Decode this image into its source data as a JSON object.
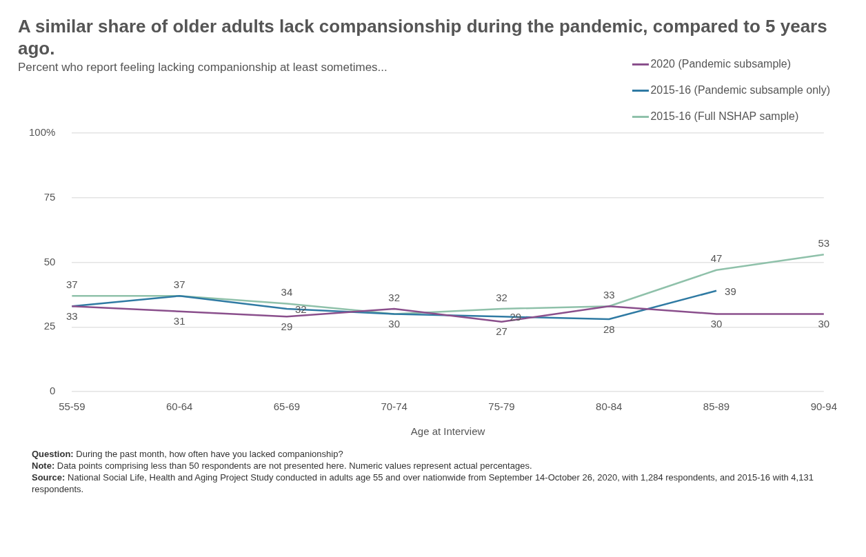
{
  "chart_data": {
    "type": "line",
    "title": "A similar share of older adults lack compansionship during the pandemic, compared to 5 years ago.",
    "subtitle": "Percent who report feeling lacking companionship at least sometimes...",
    "xlabel": "Age at Interview",
    "categories": [
      "55-59",
      "60-64",
      "65-69",
      "70-74",
      "75-79",
      "80-84",
      "85-89",
      "90-94"
    ],
    "series": [
      {
        "name": "2020 (Pandemic subsample)",
        "color": "#8a4f8c",
        "values": [
          33,
          31,
          29,
          32,
          27,
          33,
          30,
          30
        ],
        "value_labels": [
          "33",
          "31",
          "29",
          "32",
          "27",
          "33",
          "30",
          "30"
        ]
      },
      {
        "name": "2015-16 (Pandemic subsample only)",
        "color": "#2f7aa3",
        "values": [
          33,
          37,
          32,
          30,
          29,
          28,
          39,
          null
        ],
        "value_labels": [
          null,
          null,
          "32",
          null,
          "29",
          "28",
          "39",
          null
        ]
      },
      {
        "name": "2015-16 (Full NSHAP sample)",
        "color": "#8fc1aa",
        "values": [
          37,
          37,
          34,
          30,
          32,
          33,
          47,
          53
        ],
        "value_labels": [
          "37",
          "37",
          "34",
          "30",
          "32",
          null,
          "47",
          "53"
        ]
      }
    ],
    "ylim": [
      0,
      100
    ],
    "yticks": [
      0,
      25,
      50,
      75,
      {
        "value": 100,
        "label": "100%"
      }
    ],
    "grid": "y",
    "legend": "top right",
    "marker": "none",
    "line_style": "solid",
    "annotations": [
      "Question: During the past month, how often have you lacked companionship?",
      "Note: Data points comprising less than 50 respondents are not presented here. Numeric values represent actual percentages.",
      "Source: National Social Life, Health and Aging Project Study conducted in adults age 55 and over nationwide from September 14-October 26, 2020, with 1,284 respondents, and 2015-16 with 4,131 respondents."
    ]
  }
}
